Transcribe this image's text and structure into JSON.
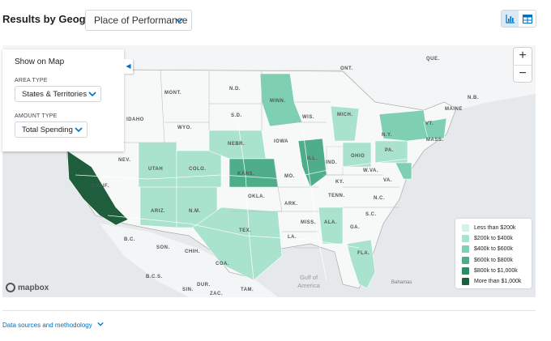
{
  "header": {
    "title": "Results by Geography",
    "dropdown_label": "Place of Performance",
    "view_options": [
      "bar-chart-icon",
      "table-icon"
    ]
  },
  "panel": {
    "heading": "Show on Map",
    "area_type_label": "AREA TYPE",
    "area_type_value": "States & Territories",
    "amount_type_label": "AMOUNT TYPE",
    "amount_type_value": "Total Spending"
  },
  "zoom": {
    "in_label": "+",
    "out_label": "−"
  },
  "legend": {
    "items": [
      {
        "label": "Less than $200k",
        "color": "#d4f1e6"
      },
      {
        "label": "$200k to $400k",
        "color": "#a9e2cd"
      },
      {
        "label": "$400k to $600k",
        "color": "#7fd0b3"
      },
      {
        "label": "$600k to $800k",
        "color": "#4fae8a"
      },
      {
        "label": "$800k to $1,000k",
        "color": "#2e8a63"
      },
      {
        "label": "More than $1,000k",
        "color": "#1f5e3c"
      }
    ]
  },
  "map_labels": {
    "ont": "ONT.",
    "que": "QUE.",
    "nb": "N.B.",
    "maine": "MAINE",
    "vt": "VT.",
    "mass": "MASS.",
    "mont": "MONT.",
    "nd": "N.D.",
    "minn": "MINN.",
    "idaho": "IDAHO",
    "wyo": "WYO.",
    "sd": "S.D.",
    "wis": "WIS.",
    "mich": "MICH.",
    "ny": "N.Y.",
    "nev": "NEV.",
    "utah": "UTAH",
    "colo": "COLO.",
    "nebr": "NEBR.",
    "iowa": "IOWA",
    "ill": "ILL.",
    "ind": "IND.",
    "ohio": "OHIO",
    "pa": "PA.",
    "calif": "CALIF.",
    "kans": "KANS.",
    "mo": "MO.",
    "ky": "KY.",
    "wva": "W.VA.",
    "va": "VA.",
    "ariz": "ARIZ.",
    "nm": "N.M.",
    "okla": "OKLA.",
    "ark": "ARK.",
    "tenn": "TENN.",
    "nc": "N.C.",
    "sc": "S.C.",
    "tex": "TEX.",
    "miss": "MISS.",
    "ala": "ALA.",
    "ga": "GA.",
    "la": "LA.",
    "fla": "FLA.",
    "bc": "B.C.",
    "son": "SON.",
    "chih": "CHIH.",
    "coa": "COA.",
    "bcs": "B.C.S.",
    "dur": "DUR.",
    "sin": "SIN.",
    "zac": "ZAC.",
    "tam": "TAM.",
    "gulf1": "Gulf of",
    "gulf2": "America",
    "bahamas": "Bahamas"
  },
  "attribution": "mapbox",
  "footer": {
    "link": "Data sources and methodology"
  }
}
